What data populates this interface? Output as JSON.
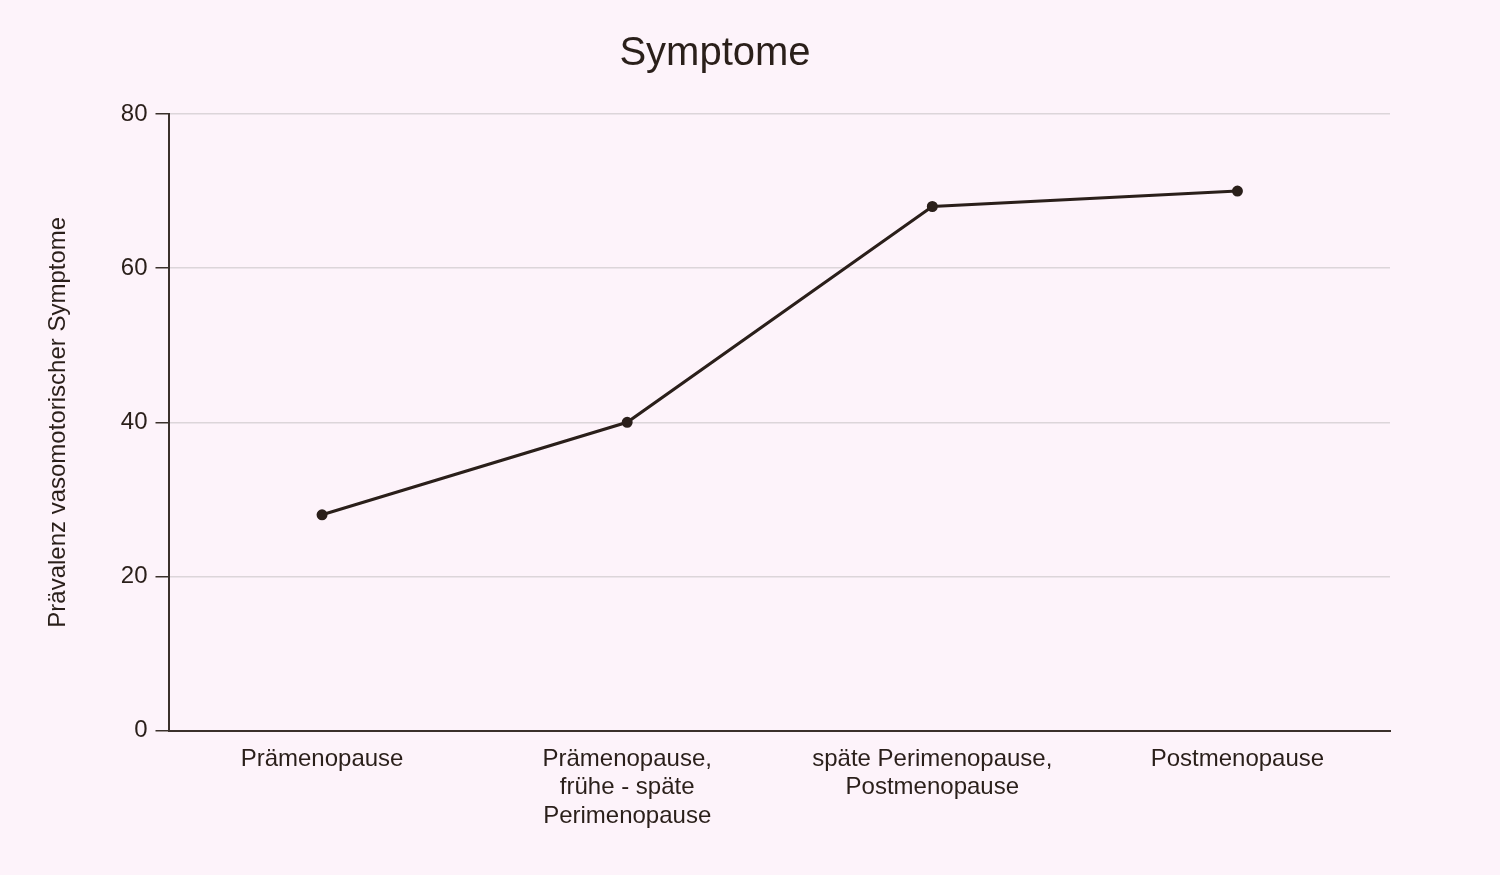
{
  "chart_data": {
    "type": "line",
    "title": "Symptome",
    "y_label": "Prävalenz vasomotorischer Symptome",
    "categories": [
      [
        "Prämenopause"
      ],
      [
        "Prämenopause,",
        "frühe - späte",
        "Perimenopause"
      ],
      [
        "späte Perimenopause,",
        "Postmenopause"
      ],
      [
        "Postmenopause"
      ]
    ],
    "values": [
      28,
      40,
      68,
      70
    ],
    "color": "#2a1f1a",
    "marker": "circle",
    "ylim": [
      0,
      80
    ],
    "yticks": [
      0,
      20,
      40,
      60,
      80
    ],
    "grid": true
  }
}
